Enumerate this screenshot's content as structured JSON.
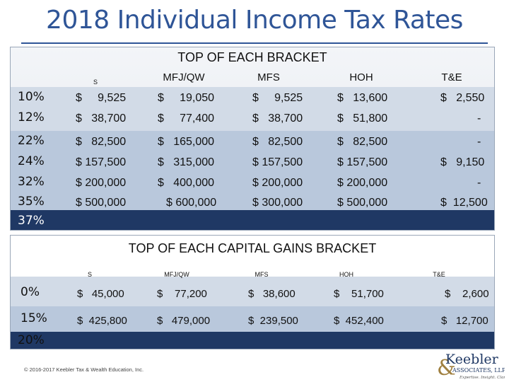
{
  "title": "2018 Individual Income Tax Rates",
  "brackets": {
    "heading": "TOP OF EACH BRACKET",
    "columns": [
      "S",
      "MFJ/QW",
      "MFS",
      "HOH",
      "T&E"
    ],
    "rates": [
      "10%",
      "12%",
      "22%",
      "24%",
      "32%",
      "35%",
      "37%"
    ],
    "rows": [
      {
        "s": "$     9,525",
        "mfj": "$     19,050",
        "mfs": "$     9,525",
        "hoh": "$   13,600",
        "te": "$   2,550"
      },
      {
        "s": "$   38,700",
        "mfj": "$     77,400",
        "mfs": "$   38,700",
        "hoh": "$   51,800",
        "te": "-"
      },
      {
        "s": "$   82,500",
        "mfj": "$   165,000",
        "mfs": "$   82,500",
        "hoh": "$   82,500",
        "te": "-"
      },
      {
        "s": "$ 157,500",
        "mfj": "$   315,000",
        "mfs": "$ 157,500",
        "hoh": "$ 157,500",
        "te": "$   9,150"
      },
      {
        "s": "$ 200,000",
        "mfj": "$   400,000",
        "mfs": "$ 200,000",
        "hoh": "$ 200,000",
        "te": "-"
      },
      {
        "s": "$ 500,000",
        "mfj": "$ 600,000",
        "mfs": "$ 300,000",
        "hoh": "$ 500,000",
        "te": "$  12,500"
      }
    ]
  },
  "capital_gains": {
    "heading": "TOP OF EACH CAPITAL GAINS BRACKET",
    "columns": [
      "S",
      "MFJ/QW",
      "MFS",
      "HOH",
      "T&E"
    ],
    "rates": [
      "0%",
      "15%",
      "20%"
    ],
    "rows": [
      {
        "s": "$   45,000",
        "mfj": "$    77,200",
        "mfs": "$   38,600",
        "hoh": "$    51,700",
        "te": "$    2,600"
      },
      {
        "s": "$  425,800",
        "mfj": "$   479,000",
        "mfs": "$  239,500",
        "hoh": "$  452,400",
        "te": "$   12,700"
      }
    ]
  },
  "footer": "© 2016-2017 Keebler Tax & Wealth Education, Inc.",
  "logo": {
    "name": "Keebler",
    "line2": "ASSOCIATES, LLP",
    "tagline": "Expertise. Insight. Clarity.",
    "brand_color": "#1f3864",
    "accent": "#a08040"
  },
  "colors": {
    "title": "#2f5597",
    "band_light": "#d2dbe7",
    "band_mid": "#b9c8dc",
    "band_dark": "#1f3864"
  }
}
